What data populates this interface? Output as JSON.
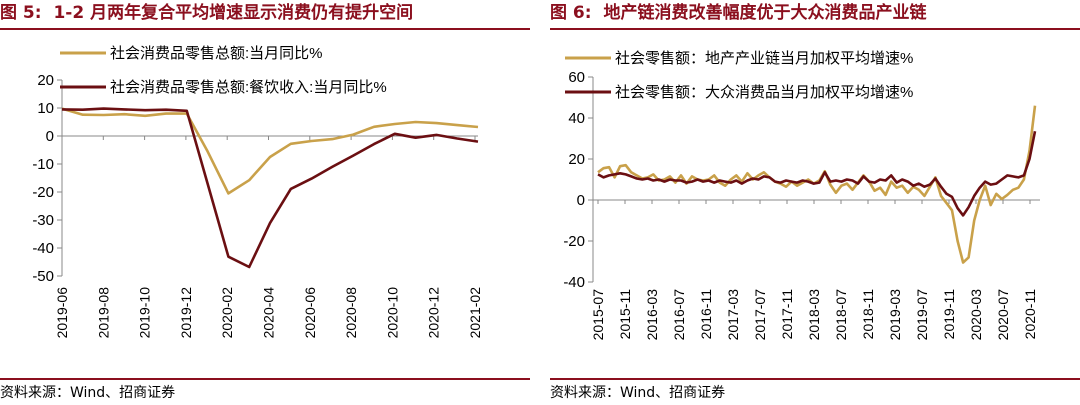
{
  "panels": [
    {
      "fig_label": "图 5:",
      "title": "1-2 月两年复合平均增速显示消费仍有提升空间",
      "source": "资料来源：Wind、招商证券"
    },
    {
      "fig_label": "图 6:",
      "title": "地产链消费改善幅度优于大众消费品产业链",
      "source": "资料来源：Wind、招商证券"
    }
  ],
  "colors": {
    "gold": "#C9A14A",
    "maroon": "#6B0F12",
    "title_red": "#8B0F1E"
  },
  "chart_data": [
    {
      "type": "line",
      "x": [
        "2019-06",
        "2019-07",
        "2019-08",
        "2019-09",
        "2019-10",
        "2019-11",
        "2019-12",
        "2020-01",
        "2020-02",
        "2020-03",
        "2020-04",
        "2020-05",
        "2020-06",
        "2020-07",
        "2020-08",
        "2020-09",
        "2020-10",
        "2020-11",
        "2020-12",
        "2021-01",
        "2021-02"
      ],
      "x_ticks": [
        "2019-06",
        "2019-08",
        "2019-10",
        "2019-12",
        "2020-02",
        "2020-04",
        "2020-06",
        "2020-08",
        "2020-10",
        "2020-12",
        "2021-02"
      ],
      "ylim": [
        -50,
        20
      ],
      "yticks": [
        20,
        10,
        0,
        -10,
        -20,
        -30,
        -40,
        -50
      ],
      "grid": false,
      "legend_position": "top-left",
      "series": [
        {
          "name": "社会消费品零售总额:当月同比%",
          "color": "#C9A14A",
          "values": [
            9.8,
            7.6,
            7.5,
            7.8,
            7.2,
            8.0,
            8.0,
            -5.5,
            -20.5,
            -15.8,
            -7.5,
            -2.8,
            -1.8,
            -1.1,
            0.5,
            3.3,
            4.3,
            5.0,
            4.6,
            3.9,
            3.2
          ]
        },
        {
          "name": "社会消费品零售总额:餐饮收入:当月同比%",
          "color": "#6B0F12",
          "values": [
            9.5,
            9.4,
            9.8,
            9.5,
            9.2,
            9.4,
            9.0,
            -17.0,
            -43.1,
            -46.8,
            -31.1,
            -18.9,
            -15.2,
            -11.0,
            -7.0,
            -2.9,
            0.8,
            -0.6,
            0.4,
            -0.9,
            -2.0
          ]
        }
      ]
    },
    {
      "type": "line",
      "x_ticks": [
        "2015-07",
        "2015-11",
        "2016-03",
        "2016-07",
        "2016-11",
        "2017-03",
        "2017-07",
        "2017-11",
        "2018-03",
        "2018-07",
        "2018-11",
        "2019-03",
        "2019-07",
        "2019-11",
        "2020-03",
        "2020-07",
        "2020-11"
      ],
      "ylim": [
        -40,
        60
      ],
      "yticks": [
        60,
        40,
        20,
        0,
        -20,
        -40
      ],
      "grid": false,
      "legend_position": "top-left",
      "series": [
        {
          "name": "社会零售额：地产产业链当月加权平均增速%",
          "color": "#C9A14A",
          "values": [
            13.5,
            15.5,
            16.0,
            11.0,
            16.5,
            17.0,
            13.5,
            12.0,
            10.5,
            11.0,
            12.5,
            9.5,
            10.0,
            11.5,
            8.5,
            12.0,
            8.0,
            11.5,
            10.0,
            9.5,
            10.0,
            12.0,
            8.5,
            7.0,
            10.0,
            12.0,
            9.0,
            13.0,
            10.0,
            12.0,
            13.5,
            11.0,
            9.0,
            8.0,
            6.5,
            9.0,
            7.0,
            8.5,
            10.0,
            8.0,
            9.5,
            14.0,
            7.5,
            3.5,
            7.0,
            8.0,
            5.0,
            8.5,
            12.0,
            9.0,
            4.5,
            6.0,
            2.5,
            9.0,
            6.0,
            7.0,
            3.5,
            6.5,
            5.0,
            2.0,
            6.5,
            11.0,
            2.0,
            -1.5,
            -5.0,
            -20.0,
            -30.5,
            -28.0,
            -10.0,
            0.0,
            7.0,
            -2.5,
            3.0,
            0.5,
            2.5,
            5.0,
            6.0,
            10.0,
            24.0,
            46.0
          ]
        },
        {
          "name": "社会零售额：大众消费品当月加权平均增速%",
          "color": "#6B0F12",
          "values": [
            12.5,
            11.0,
            12.0,
            12.5,
            13.0,
            12.5,
            11.5,
            10.5,
            10.0,
            10.5,
            9.5,
            10.0,
            9.0,
            10.0,
            9.5,
            9.5,
            8.5,
            9.0,
            10.0,
            9.0,
            9.5,
            8.5,
            9.5,
            9.0,
            8.5,
            9.5,
            8.0,
            9.5,
            10.5,
            10.0,
            11.5,
            11.0,
            9.0,
            8.5,
            9.5,
            9.0,
            8.5,
            9.5,
            9.0,
            8.0,
            8.5,
            13.5,
            9.0,
            9.5,
            9.0,
            10.0,
            9.5,
            8.0,
            11.5,
            9.0,
            8.5,
            10.0,
            9.5,
            12.0,
            8.5,
            10.0,
            9.0,
            7.0,
            8.0,
            6.5,
            7.5,
            10.5,
            6.5,
            3.0,
            1.5,
            -4.0,
            -7.5,
            -3.5,
            2.0,
            6.0,
            9.0,
            7.5,
            8.0,
            10.0,
            12.0,
            11.5,
            11.0,
            12.0,
            20.0,
            33.5
          ]
        }
      ]
    }
  ]
}
